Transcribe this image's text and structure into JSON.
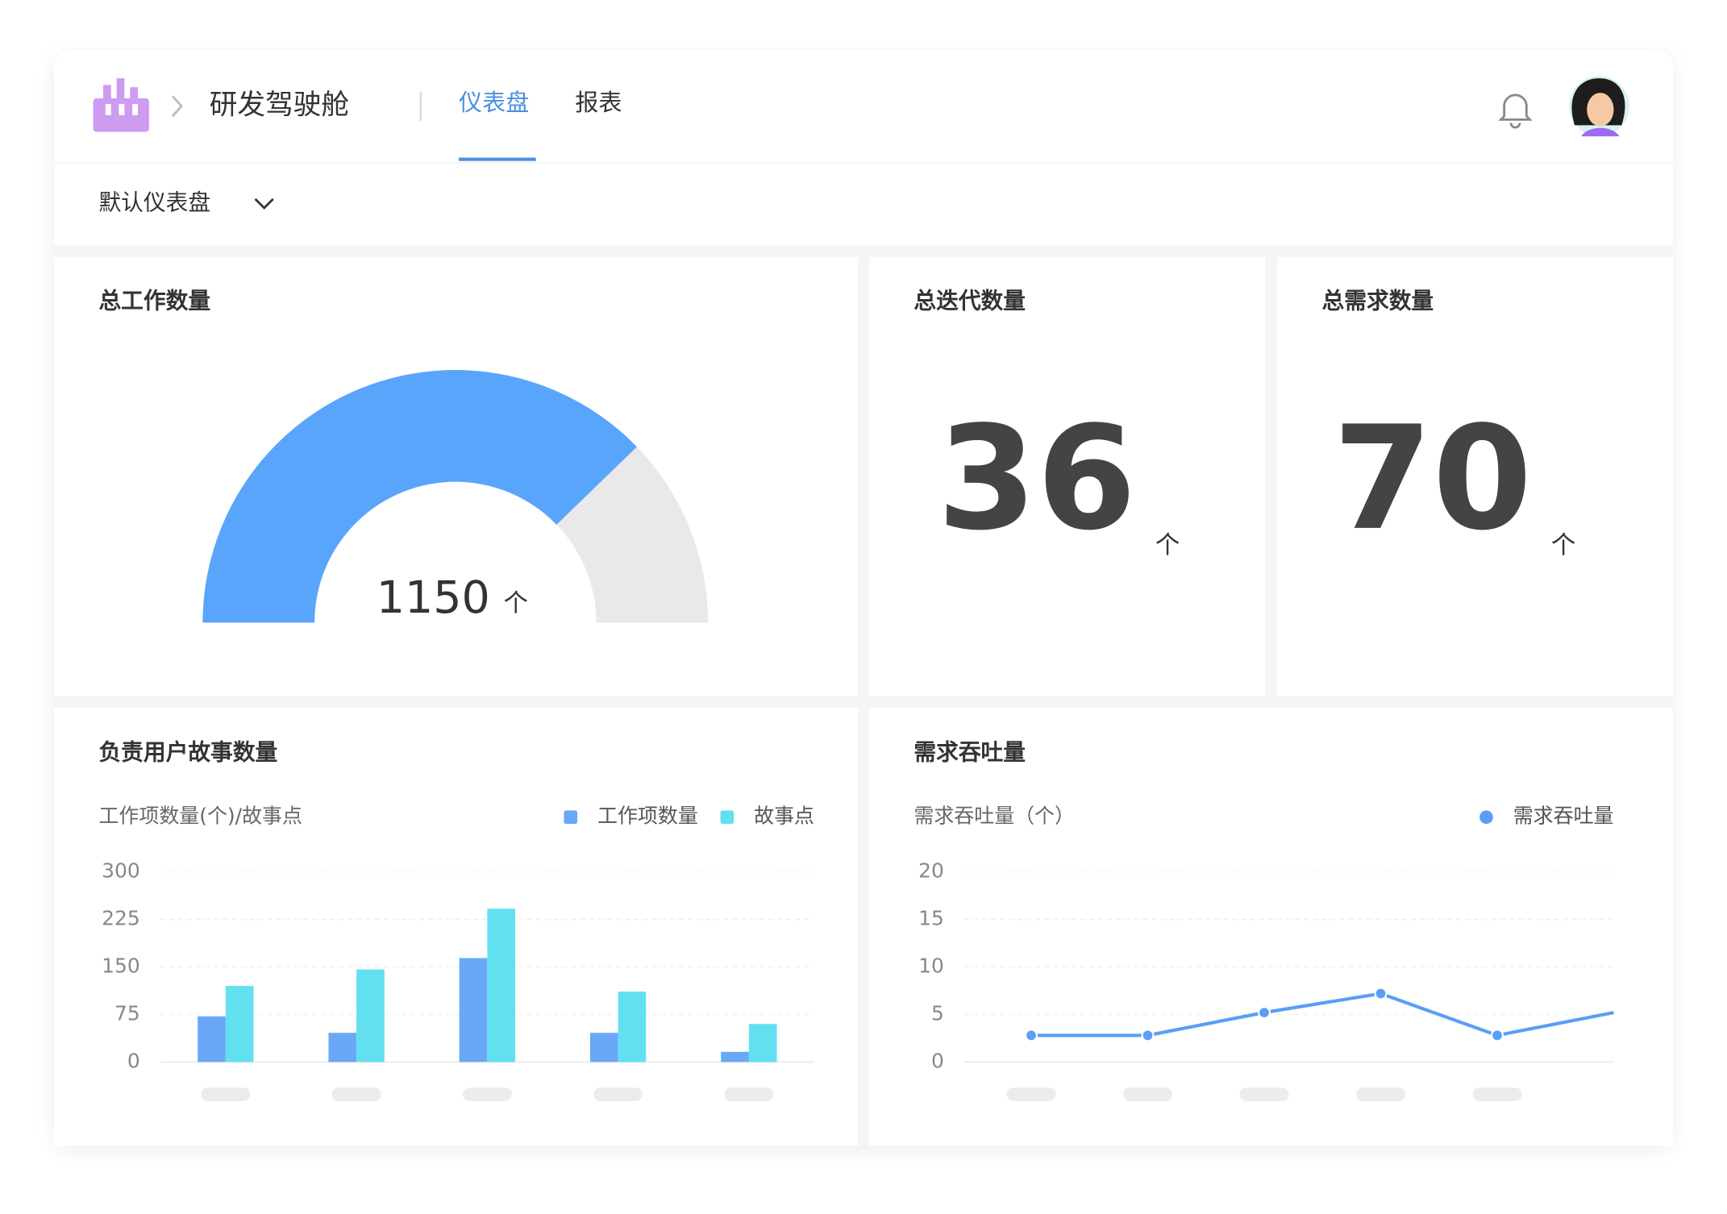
{
  "header": {
    "product": "研发驾驶舱",
    "tabs": [
      "仪表盘",
      "报表"
    ],
    "active_tab": 0
  },
  "dashboard_selector": "默认仪表盘",
  "total_work_items": {
    "title": "总工作数量",
    "value": 1150,
    "unit": "个",
    "fill_percent": 75.5,
    "fill_color": "#59a5fc",
    "rest_color": "#e9e9e9"
  },
  "iterations": {
    "title": "总迭代数量",
    "value": 36,
    "unit": "个"
  },
  "requirements": {
    "title": "总需求数量",
    "value": 70,
    "unit": "个"
  },
  "chart_data": [
    {
      "type": "bar",
      "title": "负责用户故事数量",
      "y_label": "工作项数量(个)/故事点",
      "categories": [
        null,
        null,
        null,
        null,
        null
      ],
      "series": [
        {
          "name": "工作项数量",
          "color": "#6aa8f7",
          "values": [
            72,
            46,
            164,
            46,
            16
          ]
        },
        {
          "name": "故事点",
          "color": "#63e0f0",
          "values": [
            120,
            146,
            242,
            111,
            60
          ]
        }
      ],
      "ylim": [
        0,
        300
      ],
      "yticks": [
        0,
        75,
        150,
        225,
        300
      ],
      "grid": true,
      "legend": "top-right"
    },
    {
      "type": "line",
      "title": "需求吞吐量",
      "y_label": "需求吞吐量（个）",
      "categories": [
        null,
        null,
        null,
        null,
        null,
        null
      ],
      "series": [
        {
          "name": "需求吞吐量",
          "color": "#5a9ef5",
          "values": [
            2.8,
            2.8,
            5.2,
            7.2,
            2.8,
            5.2
          ]
        }
      ],
      "ylim": [
        0,
        20
      ],
      "yticks": [
        0,
        5,
        10,
        15,
        20
      ],
      "grid": true,
      "legend": "top-right"
    }
  ]
}
